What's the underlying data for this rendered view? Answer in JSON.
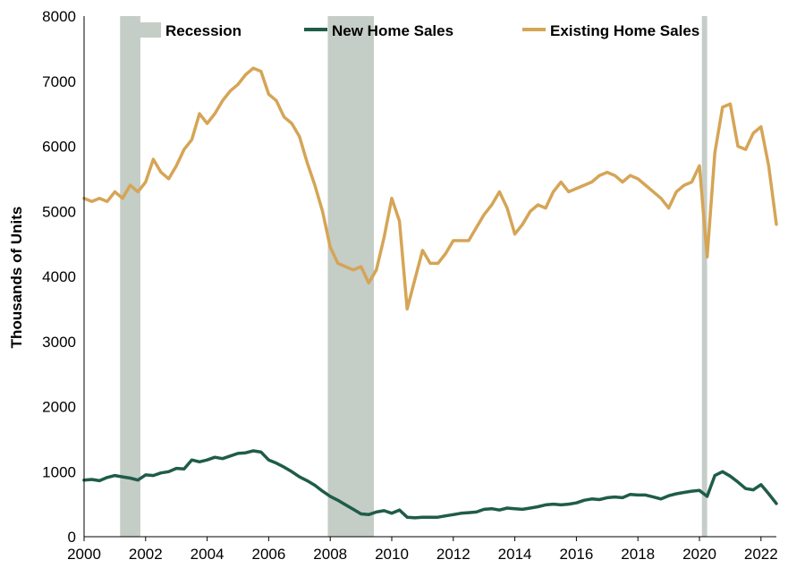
{
  "chart_data": {
    "type": "line",
    "ylabel": "Thousands of Units",
    "xlim": [
      2000,
      2022.5
    ],
    "ylim": [
      0,
      8000
    ],
    "x_ticks": [
      2000,
      2002,
      2004,
      2006,
      2008,
      2010,
      2012,
      2014,
      2016,
      2018,
      2020,
      2022
    ],
    "y_ticks": [
      0,
      1000,
      2000,
      3000,
      4000,
      5000,
      6000,
      7000,
      8000
    ],
    "grid": false,
    "legend_position": "top",
    "recessions": {
      "name": "Recession",
      "color": "#c5cdc7",
      "periods": [
        [
          2001.17,
          2001.83
        ],
        [
          2007.92,
          2009.42
        ],
        [
          2020.08,
          2020.25
        ]
      ]
    },
    "series": [
      {
        "name": "New Home Sales",
        "color": "#1f5c4a",
        "points": [
          [
            2000.0,
            870
          ],
          [
            2000.25,
            880
          ],
          [
            2000.5,
            860
          ],
          [
            2000.75,
            910
          ],
          [
            2001.0,
            940
          ],
          [
            2001.25,
            920
          ],
          [
            2001.5,
            900
          ],
          [
            2001.75,
            870
          ],
          [
            2002.0,
            950
          ],
          [
            2002.25,
            940
          ],
          [
            2002.5,
            980
          ],
          [
            2002.75,
            1000
          ],
          [
            2003.0,
            1050
          ],
          [
            2003.25,
            1040
          ],
          [
            2003.5,
            1180
          ],
          [
            2003.75,
            1150
          ],
          [
            2004.0,
            1180
          ],
          [
            2004.25,
            1220
          ],
          [
            2004.5,
            1200
          ],
          [
            2004.75,
            1240
          ],
          [
            2005.0,
            1280
          ],
          [
            2005.25,
            1290
          ],
          [
            2005.5,
            1320
          ],
          [
            2005.75,
            1300
          ],
          [
            2006.0,
            1180
          ],
          [
            2006.25,
            1130
          ],
          [
            2006.5,
            1070
          ],
          [
            2006.75,
            1000
          ],
          [
            2007.0,
            920
          ],
          [
            2007.25,
            860
          ],
          [
            2007.5,
            790
          ],
          [
            2007.75,
            700
          ],
          [
            2008.0,
            620
          ],
          [
            2008.25,
            560
          ],
          [
            2008.5,
            490
          ],
          [
            2008.75,
            420
          ],
          [
            2009.0,
            350
          ],
          [
            2009.25,
            340
          ],
          [
            2009.5,
            380
          ],
          [
            2009.75,
            400
          ],
          [
            2010.0,
            360
          ],
          [
            2010.25,
            410
          ],
          [
            2010.5,
            300
          ],
          [
            2010.75,
            290
          ],
          [
            2011.0,
            300
          ],
          [
            2011.25,
            300
          ],
          [
            2011.5,
            300
          ],
          [
            2011.75,
            320
          ],
          [
            2012.0,
            340
          ],
          [
            2012.25,
            360
          ],
          [
            2012.5,
            370
          ],
          [
            2012.75,
            380
          ],
          [
            2013.0,
            420
          ],
          [
            2013.25,
            430
          ],
          [
            2013.5,
            410
          ],
          [
            2013.75,
            440
          ],
          [
            2014.0,
            430
          ],
          [
            2014.25,
            420
          ],
          [
            2014.5,
            440
          ],
          [
            2014.75,
            460
          ],
          [
            2015.0,
            490
          ],
          [
            2015.25,
            500
          ],
          [
            2015.5,
            490
          ],
          [
            2015.75,
            500
          ],
          [
            2016.0,
            520
          ],
          [
            2016.25,
            560
          ],
          [
            2016.5,
            580
          ],
          [
            2016.75,
            570
          ],
          [
            2017.0,
            600
          ],
          [
            2017.25,
            610
          ],
          [
            2017.5,
            600
          ],
          [
            2017.75,
            650
          ],
          [
            2018.0,
            640
          ],
          [
            2018.25,
            640
          ],
          [
            2018.5,
            610
          ],
          [
            2018.75,
            580
          ],
          [
            2019.0,
            630
          ],
          [
            2019.25,
            660
          ],
          [
            2019.5,
            680
          ],
          [
            2019.75,
            700
          ],
          [
            2020.0,
            710
          ],
          [
            2020.25,
            620
          ],
          [
            2020.5,
            940
          ],
          [
            2020.75,
            1000
          ],
          [
            2021.0,
            930
          ],
          [
            2021.25,
            840
          ],
          [
            2021.5,
            740
          ],
          [
            2021.75,
            720
          ],
          [
            2022.0,
            800
          ],
          [
            2022.25,
            660
          ],
          [
            2022.5,
            510
          ]
        ]
      },
      {
        "name": "Existing Home Sales",
        "color": "#d5a556",
        "points": [
          [
            2000.0,
            5200
          ],
          [
            2000.25,
            5150
          ],
          [
            2000.5,
            5200
          ],
          [
            2000.75,
            5150
          ],
          [
            2001.0,
            5300
          ],
          [
            2001.25,
            5200
          ],
          [
            2001.5,
            5400
          ],
          [
            2001.75,
            5300
          ],
          [
            2002.0,
            5450
          ],
          [
            2002.25,
            5800
          ],
          [
            2002.5,
            5600
          ],
          [
            2002.75,
            5500
          ],
          [
            2003.0,
            5700
          ],
          [
            2003.25,
            5950
          ],
          [
            2003.5,
            6100
          ],
          [
            2003.75,
            6500
          ],
          [
            2004.0,
            6350
          ],
          [
            2004.25,
            6500
          ],
          [
            2004.5,
            6700
          ],
          [
            2004.75,
            6850
          ],
          [
            2005.0,
            6950
          ],
          [
            2005.25,
            7100
          ],
          [
            2005.5,
            7200
          ],
          [
            2005.75,
            7150
          ],
          [
            2006.0,
            6800
          ],
          [
            2006.25,
            6700
          ],
          [
            2006.5,
            6450
          ],
          [
            2006.75,
            6350
          ],
          [
            2007.0,
            6150
          ],
          [
            2007.25,
            5750
          ],
          [
            2007.5,
            5400
          ],
          [
            2007.75,
            5000
          ],
          [
            2008.0,
            4450
          ],
          [
            2008.25,
            4200
          ],
          [
            2008.5,
            4150
          ],
          [
            2008.75,
            4100
          ],
          [
            2009.0,
            4150
          ],
          [
            2009.25,
            3900
          ],
          [
            2009.5,
            4100
          ],
          [
            2009.75,
            4600
          ],
          [
            2010.0,
            5200
          ],
          [
            2010.25,
            4850
          ],
          [
            2010.5,
            3500
          ],
          [
            2010.75,
            3950
          ],
          [
            2011.0,
            4400
          ],
          [
            2011.25,
            4200
          ],
          [
            2011.5,
            4200
          ],
          [
            2011.75,
            4350
          ],
          [
            2012.0,
            4550
          ],
          [
            2012.25,
            4550
          ],
          [
            2012.5,
            4550
          ],
          [
            2012.75,
            4750
          ],
          [
            2013.0,
            4950
          ],
          [
            2013.25,
            5100
          ],
          [
            2013.5,
            5300
          ],
          [
            2013.75,
            5050
          ],
          [
            2014.0,
            4650
          ],
          [
            2014.25,
            4800
          ],
          [
            2014.5,
            5000
          ],
          [
            2014.75,
            5100
          ],
          [
            2015.0,
            5050
          ],
          [
            2015.25,
            5300
          ],
          [
            2015.5,
            5450
          ],
          [
            2015.75,
            5300
          ],
          [
            2016.0,
            5350
          ],
          [
            2016.25,
            5400
          ],
          [
            2016.5,
            5450
          ],
          [
            2016.75,
            5550
          ],
          [
            2017.0,
            5600
          ],
          [
            2017.25,
            5550
          ],
          [
            2017.5,
            5450
          ],
          [
            2017.75,
            5550
          ],
          [
            2018.0,
            5500
          ],
          [
            2018.25,
            5400
          ],
          [
            2018.5,
            5300
          ],
          [
            2018.75,
            5200
          ],
          [
            2019.0,
            5050
          ],
          [
            2019.25,
            5300
          ],
          [
            2019.5,
            5400
          ],
          [
            2019.75,
            5450
          ],
          [
            2020.0,
            5700
          ],
          [
            2020.25,
            4300
          ],
          [
            2020.5,
            5900
          ],
          [
            2020.75,
            6600
          ],
          [
            2021.0,
            6650
          ],
          [
            2021.25,
            6000
          ],
          [
            2021.5,
            5950
          ],
          [
            2021.75,
            6200
          ],
          [
            2022.0,
            6300
          ],
          [
            2022.25,
            5700
          ],
          [
            2022.5,
            4800
          ]
        ]
      }
    ]
  }
}
